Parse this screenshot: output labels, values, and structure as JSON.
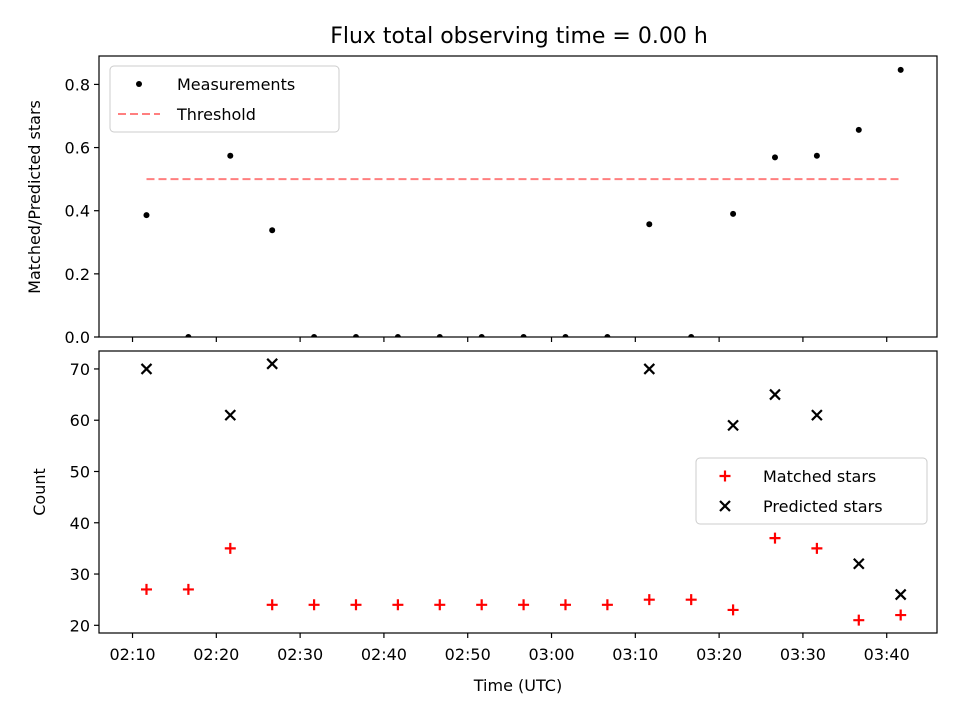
{
  "figure_title": "Flux total observing time = 0.00 h",
  "chart_data": [
    {
      "type": "scatter",
      "title": "Flux total observing time = 0.00 h",
      "xlabel": "",
      "ylabel": "Matched/Predicted stars",
      "xlim": [
        "02:06",
        "03:46"
      ],
      "ylim": [
        0.0,
        0.89
      ],
      "yticks": [
        0.0,
        0.2,
        0.4,
        0.6,
        0.8
      ],
      "ytick_labels": [
        "0.0",
        "0.2",
        "0.4",
        "0.6",
        "0.8"
      ],
      "legend_position": "upper-left",
      "series": [
        {
          "name": "Measurements",
          "marker": "dot",
          "color": "#000000",
          "x": [
            "02:11:40",
            "02:16:40",
            "02:21:40",
            "02:26:40",
            "02:31:40",
            "02:36:40",
            "02:41:40",
            "02:46:40",
            "02:51:40",
            "02:56:40",
            "03:01:40",
            "03:06:40",
            "03:11:40",
            "03:16:40",
            "03:21:40",
            "03:26:40",
            "03:31:40",
            "03:36:40",
            "03:41:40"
          ],
          "y": [
            0.386,
            0.0,
            0.574,
            0.338,
            0.0,
            0.0,
            0.0,
            0.0,
            0.0,
            0.0,
            0.0,
            0.0,
            0.357,
            0.0,
            0.39,
            0.569,
            0.574,
            0.656,
            0.846
          ]
        },
        {
          "name": "Threshold",
          "marker": "dashed-line",
          "color": "#ff7f7f",
          "x": [
            "02:11:40",
            "03:41:40"
          ],
          "y": [
            0.5,
            0.5
          ]
        }
      ]
    },
    {
      "type": "scatter",
      "title": "",
      "xlabel": "Time (UTC)",
      "ylabel": "Count",
      "xlim": [
        "02:06",
        "03:46"
      ],
      "ylim": [
        18.5,
        73.5
      ],
      "yticks": [
        20,
        30,
        40,
        50,
        60,
        70
      ],
      "ytick_labels": [
        "20",
        "30",
        "40",
        "50",
        "60",
        "70"
      ],
      "xticks": [
        "02:10",
        "02:20",
        "02:30",
        "02:40",
        "02:50",
        "03:00",
        "03:10",
        "03:20",
        "03:30",
        "03:40"
      ],
      "legend_position": "center-right",
      "series": [
        {
          "name": "Matched stars",
          "marker": "plus",
          "color": "#ff0000",
          "x": [
            "02:11:40",
            "02:16:40",
            "02:21:40",
            "02:26:40",
            "02:31:40",
            "02:36:40",
            "02:41:40",
            "02:46:40",
            "02:51:40",
            "02:56:40",
            "03:01:40",
            "03:06:40",
            "03:11:40",
            "03:16:40",
            "03:21:40",
            "03:26:40",
            "03:31:40",
            "03:36:40",
            "03:41:40"
          ],
          "y": [
            27,
            27,
            35,
            24,
            24,
            24,
            24,
            24,
            24,
            24,
            24,
            24,
            25,
            25,
            23,
            37,
            35,
            21,
            22
          ]
        },
        {
          "name": "Predicted stars",
          "marker": "cross",
          "color": "#000000",
          "x": [
            "02:11:40",
            "02:21:40",
            "02:26:40",
            "03:11:40",
            "03:21:40",
            "03:26:40",
            "03:31:40",
            "03:36:40",
            "03:41:40"
          ],
          "y": [
            70,
            61,
            71,
            70,
            59,
            65,
            61,
            32,
            26
          ]
        }
      ]
    }
  ]
}
